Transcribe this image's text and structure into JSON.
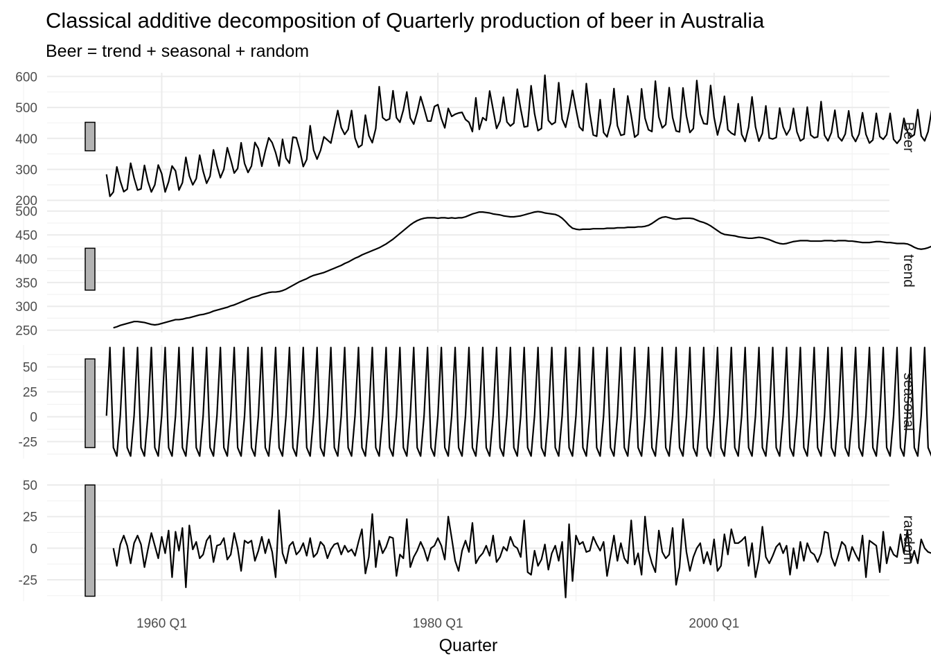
{
  "chart_data": {
    "type": "line",
    "title": "Classical additive decomposition of Quarterly production of beer in Australia",
    "subtitle": "Beer = trend + seasonal + random",
    "xlabel": "Quarter",
    "x_tick_labels": [
      "1960 Q1",
      "1980 Q1",
      "2000 Q1"
    ],
    "x_ticks_major_years": [
      1960,
      1980,
      2000
    ],
    "x_ticks_minor_years": [
      1950,
      1970,
      1990,
      2010
    ],
    "xlim": [
      1951.7,
      2012.7
    ],
    "x_start": "1956 Q1",
    "x_end": "2010 Q2",
    "grid": true,
    "seasonal_pattern_q1_to_q4": [
      -31.0,
      -39.5,
      1.0,
      69.5
    ],
    "panels": [
      {
        "name": "Beer",
        "ylim": [
          196,
          612
        ],
        "ticks": [
          200,
          300,
          400,
          500,
          600
        ],
        "range_bar": [
          360,
          452
        ],
        "values": [
          284,
          213,
          227,
          308,
          262,
          228,
          236,
          320,
          272,
          233,
          237,
          313,
          261,
          227,
          250,
          314,
          286,
          227,
          260,
          311,
          295,
          233,
          257,
          339,
          279,
          250,
          270,
          346,
          294,
          255,
          278,
          363,
          313,
          273,
          300,
          370,
          331,
          288,
          303,
          386,
          319,
          290,
          311,
          387,
          367,
          310,
          359,
          402,
          386,
          354,
          311,
          397,
          336,
          320,
          404,
          402,
          362,
          309,
          332,
          441,
          362,
          333,
          361,
          405,
          395,
          385,
          438,
          490,
          435,
          413,
          429,
          490,
          401,
          371,
          379,
          475,
          409,
          386,
          432,
          567,
          467,
          458,
          463,
          554,
          467,
          452,
          492,
          550,
          466,
          446,
          484,
          535,
          497,
          456,
          456,
          503,
          509,
          464,
          434,
          497,
          471,
          478,
          482,
          484,
          461,
          452,
          422,
          531,
          429,
          467,
          458,
          553,
          493,
          432,
          456,
          533,
          453,
          440,
          449,
          559,
          494,
          437,
          439,
          570,
          480,
          425,
          432,
          604,
          458,
          445,
          452,
          580,
          462,
          436,
          488,
          555,
          494,
          437,
          425,
          577,
          481,
          411,
          407,
          525,
          419,
          405,
          448,
          561,
          441,
          410,
          413,
          537,
          474,
          404,
          413,
          560,
          465,
          428,
          422,
          585,
          469,
          434,
          445,
          564,
          467,
          424,
          421,
          563,
          472,
          419,
          432,
          587,
          479,
          448,
          446,
          571,
          468,
          411,
          455,
          536,
          428,
          417,
          411,
          512,
          413,
          390,
          436,
          534,
          437,
          391,
          416,
          505,
          401,
          398,
          403,
          498,
          437,
          411,
          430,
          497,
          421,
          392,
          399,
          501,
          411,
          402,
          405,
          519,
          410,
          392,
          419,
          491,
          405,
          392,
          414,
          489,
          409,
          390,
          414,
          483,
          413,
          385,
          395,
          481,
          406,
          397,
          412,
          481,
          397,
          384,
          398,
          465,
          422,
          404,
          412,
          493,
          408,
          392,
          422,
          489,
          406,
          380
        ],
        "label": "Beer"
      },
      {
        "name": "trend",
        "ylim": [
          245,
          504
        ],
        "ticks": [
          250,
          300,
          350,
          400,
          450,
          500
        ],
        "range_bar": [
          334,
          422
        ],
        "first_index": 2,
        "values": [
          255,
          257,
          260,
          262,
          264,
          266,
          268,
          268,
          267,
          266,
          264,
          262,
          261,
          262,
          264,
          266,
          268,
          270,
          272,
          272,
          273,
          275,
          276,
          278,
          280,
          282,
          283,
          285,
          287,
          290,
          292,
          294,
          296,
          298,
          301,
          303,
          306,
          309,
          312,
          315,
          318,
          320,
          322,
          325,
          327,
          329,
          330,
          330,
          331,
          333,
          336,
          340,
          344,
          348,
          352,
          355,
          358,
          362,
          365,
          367,
          369,
          371,
          374,
          377,
          380,
          383,
          386,
          390,
          393,
          397,
          401,
          404,
          408,
          411,
          414,
          417,
          420,
          423,
          427,
          431,
          436,
          441,
          447,
          453,
          459,
          465,
          471,
          476,
          480,
          483,
          485,
          486,
          486,
          486,
          485,
          486,
          486,
          485,
          486,
          485,
          486,
          486,
          488,
          491,
          494,
          496,
          498,
          498,
          497,
          496,
          494,
          493,
          492,
          490,
          489,
          488,
          488,
          489,
          490,
          492,
          494,
          496,
          498,
          499,
          498,
          496,
          495,
          494,
          493,
          490,
          485,
          478,
          470,
          464,
          462,
          461,
          462,
          462,
          462,
          463,
          463,
          463,
          463,
          464,
          464,
          464,
          465,
          465,
          465,
          466,
          466,
          466,
          467,
          467,
          468,
          470,
          474,
          479,
          484,
          487,
          488,
          486,
          484,
          483,
          484,
          485,
          485,
          485,
          484,
          481,
          478,
          476,
          473,
          469,
          464,
          459,
          454,
          451,
          450,
          449,
          448,
          446,
          445,
          444,
          443,
          443,
          444,
          445,
          444,
          442,
          440,
          437,
          434,
          432,
          431,
          432,
          434,
          436,
          437,
          438,
          438,
          438,
          437,
          437,
          437,
          437,
          438,
          438,
          438,
          437,
          438,
          438,
          438,
          437,
          437,
          436,
          435,
          434,
          434,
          434,
          435,
          436,
          436,
          435,
          434,
          434,
          433,
          432,
          432,
          432,
          431,
          428,
          424,
          421,
          420,
          421,
          423,
          426,
          428,
          429,
          429,
          428,
          428,
          427,
          426,
          424,
          422,
          419,
          419,
          420,
          423,
          425,
          426,
          427,
          428,
          429,
          429,
          427
        ]
      },
      {
        "name": "seasonal",
        "ylim": [
          -42,
          72
        ],
        "ticks": [
          -25,
          0,
          25,
          50
        ],
        "range_bar": [
          -31,
          58
        ],
        "label": "seasonal"
      },
      {
        "name": "random",
        "ylim": [
          -42,
          55
        ],
        "ticks": [
          -25,
          0,
          25,
          50
        ],
        "range_bar": [
          -38,
          50
        ],
        "first_index": 2,
        "values": [
          0,
          -14,
          3,
          10,
          2,
          -12,
          4,
          10,
          3,
          -15,
          -1,
          12,
          2,
          -8,
          9,
          -4,
          14,
          -23,
          13,
          -2,
          16,
          -31,
          18,
          -1,
          5,
          -8,
          -5,
          6,
          10,
          -11,
          2,
          3,
          8,
          -9,
          -5,
          12,
          0,
          -18,
          6,
          4,
          6,
          -10,
          -2,
          9,
          -4,
          7,
          -3,
          -23,
          30,
          -4,
          -12,
          2,
          5,
          -5,
          -2,
          4,
          -6,
          8,
          -7,
          -4,
          5,
          2,
          -8,
          -1,
          3,
          4,
          -5,
          2,
          -3,
          -1,
          -6,
          5,
          15,
          -20,
          -7,
          27,
          -15,
          6,
          -4,
          1,
          9,
          8,
          -22,
          -5,
          -8,
          23,
          -15,
          -7,
          -2,
          5,
          -1,
          -10,
          0,
          2,
          8,
          2,
          -9,
          25,
          8,
          -10,
          -18,
          -2,
          6,
          -3,
          20,
          -12,
          -7,
          -4,
          2,
          -6,
          10,
          -11,
          -7,
          1,
          -2,
          9,
          2,
          0,
          -7,
          22,
          -19,
          -21,
          -2,
          -14,
          -9,
          3,
          -17,
          -4,
          2,
          -10,
          5,
          -39,
          19,
          -26,
          10,
          3,
          5,
          -3,
          -2,
          9,
          3,
          -2,
          5,
          -22,
          -6,
          10,
          -10,
          4,
          -8,
          -12,
          22,
          -13,
          -4,
          -21,
          25,
          -2,
          -12,
          -19,
          14,
          -3,
          -8,
          -5,
          16,
          -29,
          -15,
          23,
          -3,
          -18,
          -7,
          0,
          4,
          -12,
          -3,
          -13,
          7,
          -18,
          -14,
          11,
          -5,
          15,
          4,
          4,
          6,
          9,
          -14,
          4,
          -23,
          -9,
          17,
          -7,
          -12,
          -6,
          1,
          4,
          -4,
          2,
          -21,
          0,
          -16,
          5,
          -10,
          4,
          -3,
          -5,
          -11,
          -4,
          13,
          12,
          -7,
          -14,
          -5,
          5,
          2,
          -10,
          1,
          -5,
          -10,
          10,
          -23,
          6,
          4,
          2,
          -19,
          13,
          -12,
          1,
          -5,
          -7,
          11,
          -4,
          14,
          -11,
          -2,
          -12,
          7,
          0,
          -3,
          -4,
          7,
          -3,
          5,
          -4,
          7,
          -7,
          -5,
          -1,
          2,
          -7,
          8,
          -9,
          -11,
          7,
          -2,
          4,
          -13,
          3,
          -5,
          -6,
          -32,
          -10,
          7,
          23,
          -4,
          14,
          10,
          -12,
          -7,
          2,
          -5,
          1,
          2,
          -4,
          -13,
          6,
          3,
          -8,
          -1,
          -16,
          3,
          2,
          5,
          12,
          -8,
          9,
          3,
          16,
          -8,
          -11,
          -7
        ]
      }
    ]
  }
}
